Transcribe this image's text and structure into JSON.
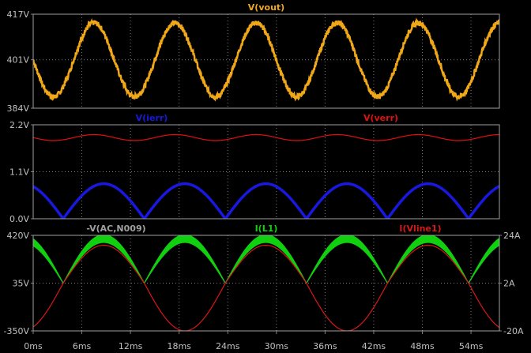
{
  "chart_data": [
    {
      "type": "line",
      "ylim": [
        384,
        417
      ],
      "y_ticks": [
        "417V",
        "401V",
        "384V"
      ],
      "y_tick_values": [
        417,
        401,
        384
      ],
      "series": [
        {
          "name": "V(vout)",
          "color": "#f0a818",
          "offset": 401,
          "amplitude": 13,
          "freq_hz": 100,
          "phase_ms": 7.5,
          "ripple": 1.8
        }
      ]
    },
    {
      "type": "line",
      "ylim": [
        0.0,
        2.2
      ],
      "y_ticks": [
        "2.2V",
        "1.1V",
        "0.0V"
      ],
      "y_tick_values": [
        2.2,
        1.1,
        0.0
      ],
      "series": [
        {
          "name": "V(ierr)",
          "color": "#1818e0",
          "kind": "abs_sine",
          "peak": 0.82,
          "freq_hz": 50,
          "zero_ms": 3.7
        },
        {
          "name": "V(verr)",
          "color": "#e01010",
          "offset": 1.9,
          "amplitude": 0.07,
          "freq_hz": 100,
          "phase_ms": 7.5
        }
      ]
    },
    {
      "type": "line",
      "ylim": [
        -350,
        420
      ],
      "y_ticks": [
        "420V",
        "35V",
        "-350V"
      ],
      "y_tick_values": [
        420,
        35,
        -350
      ],
      "y2lim": [
        -20,
        24
      ],
      "y2_ticks": [
        "24A",
        "2A",
        "-20A"
      ],
      "y2_tick_values": [
        24,
        2,
        -20
      ],
      "series": [
        {
          "name": "-V(AC,N009)",
          "color": "#a0a0a0",
          "kind": "abs_sine",
          "peak": 380,
          "freq_hz": 50,
          "zero_ms": 3.7
        },
        {
          "name": "I(L1)",
          "color": "#10d010",
          "kind": "abs_band",
          "peak": 380,
          "band": 45,
          "freq_hz": 50,
          "zero_ms": 3.7
        },
        {
          "name": "I(Vline1)",
          "color": "#d81818",
          "kind": "sine",
          "peak": 350,
          "freq_hz": 50,
          "zero_ms": 3.7
        }
      ]
    }
  ],
  "x_axis": {
    "range_ms": [
      0,
      57.5
    ],
    "ticks": [
      "0ms",
      "6ms",
      "12ms",
      "18ms",
      "24ms",
      "30ms",
      "36ms",
      "42ms",
      "48ms",
      "54ms"
    ],
    "tick_values": [
      0,
      6,
      12,
      18,
      24,
      30,
      36,
      42,
      48,
      54
    ]
  }
}
